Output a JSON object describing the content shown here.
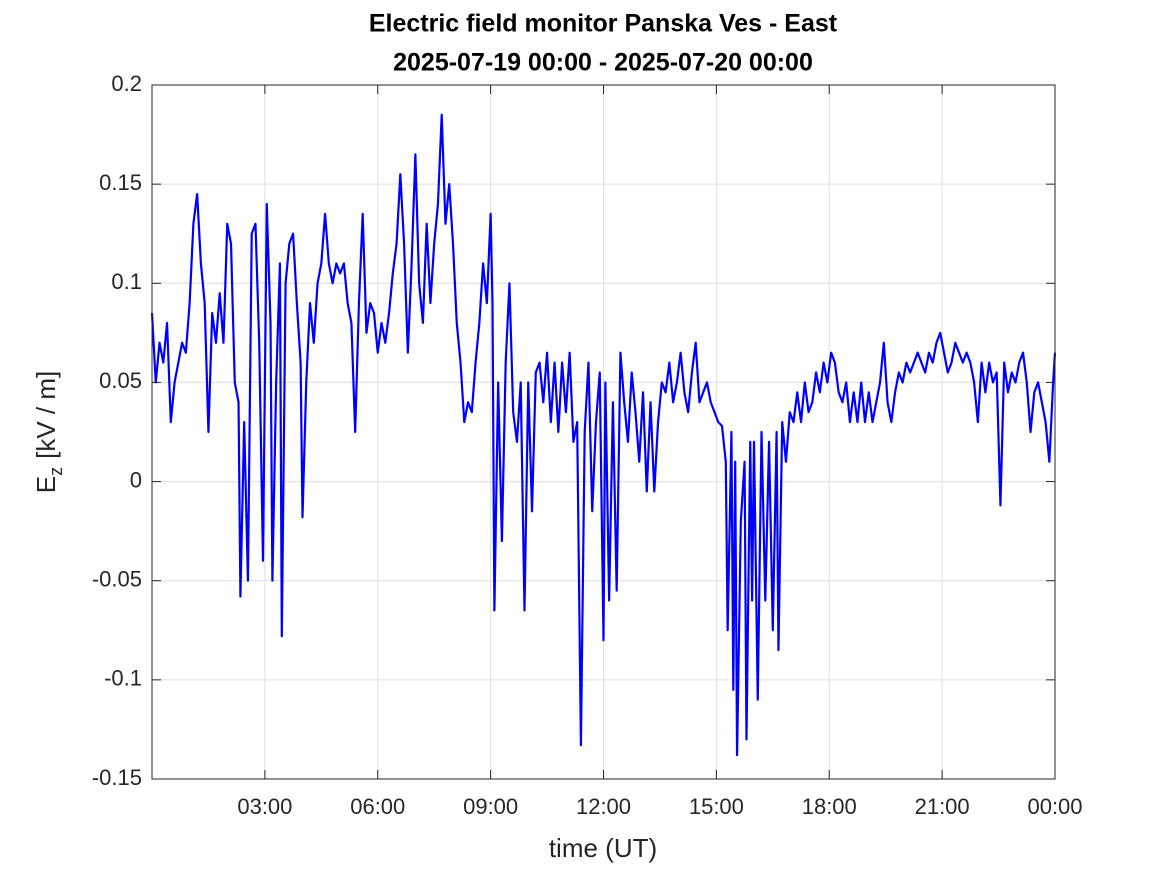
{
  "chart_data": {
    "type": "line",
    "title": "Electric field monitor Panska Ves - East",
    "subtitle": "2025-07-19 00:00 - 2025-07-20 00:00",
    "xlabel": "time (UT)",
    "ylabel": {
      "symbol": "E",
      "subscript": "z",
      "unit": "[kV / m]"
    },
    "xlim": [
      0,
      24
    ],
    "xticks": [
      {
        "value": 3,
        "label": "03:00"
      },
      {
        "value": 6,
        "label": "06:00"
      },
      {
        "value": 9,
        "label": "09:00"
      },
      {
        "value": 12,
        "label": "12:00"
      },
      {
        "value": 15,
        "label": "15:00"
      },
      {
        "value": 18,
        "label": "18:00"
      },
      {
        "value": 21,
        "label": "21:00"
      },
      {
        "value": 24,
        "label": "00:00"
      }
    ],
    "ylim": [
      -0.15,
      0.2
    ],
    "yticks": [
      -0.15,
      -0.1,
      -0.05,
      0,
      0.05,
      0.1,
      0.15,
      0.2
    ],
    "grid": true,
    "x": [
      0.0,
      0.1,
      0.2,
      0.3,
      0.4,
      0.5,
      0.6,
      0.7,
      0.8,
      0.9,
      1.0,
      1.1,
      1.2,
      1.3,
      1.4,
      1.5,
      1.6,
      1.7,
      1.8,
      1.9,
      2.0,
      2.1,
      2.2,
      2.3,
      2.35,
      2.45,
      2.55,
      2.65,
      2.75,
      2.85,
      2.95,
      3.05,
      3.15,
      3.2,
      3.3,
      3.4,
      3.45,
      3.55,
      3.65,
      3.75,
      3.85,
      3.95,
      4.0,
      4.1,
      4.2,
      4.3,
      4.4,
      4.5,
      4.6,
      4.7,
      4.8,
      4.9,
      5.0,
      5.1,
      5.2,
      5.3,
      5.4,
      5.5,
      5.6,
      5.7,
      5.8,
      5.9,
      6.0,
      6.1,
      6.2,
      6.3,
      6.4,
      6.5,
      6.6,
      6.7,
      6.8,
      6.9,
      7.0,
      7.1,
      7.2,
      7.3,
      7.4,
      7.5,
      7.6,
      7.7,
      7.8,
      7.9,
      8.0,
      8.1,
      8.2,
      8.3,
      8.4,
      8.5,
      8.6,
      8.7,
      8.8,
      8.9,
      9.0,
      9.05,
      9.1,
      9.2,
      9.3,
      9.4,
      9.5,
      9.6,
      9.7,
      9.8,
      9.9,
      10.0,
      10.1,
      10.2,
      10.3,
      10.4,
      10.5,
      10.6,
      10.7,
      10.8,
      10.9,
      11.0,
      11.1,
      11.2,
      11.3,
      11.4,
      11.5,
      11.6,
      11.7,
      11.8,
      11.9,
      12.0,
      12.05,
      12.15,
      12.25,
      12.35,
      12.45,
      12.55,
      12.65,
      12.75,
      12.85,
      12.95,
      13.05,
      13.15,
      13.25,
      13.35,
      13.45,
      13.55,
      13.65,
      13.75,
      13.85,
      13.95,
      14.05,
      14.15,
      14.25,
      14.35,
      14.45,
      14.55,
      14.65,
      14.75,
      14.85,
      14.95,
      15.05,
      15.15,
      15.25,
      15.3,
      15.4,
      15.45,
      15.5,
      15.55,
      15.65,
      15.75,
      15.8,
      15.9,
      15.95,
      16.0,
      16.1,
      16.2,
      16.3,
      16.4,
      16.5,
      16.6,
      16.65,
      16.75,
      16.85,
      16.95,
      17.05,
      17.15,
      17.25,
      17.35,
      17.45,
      17.55,
      17.65,
      17.75,
      17.85,
      17.95,
      18.05,
      18.15,
      18.25,
      18.35,
      18.45,
      18.55,
      18.65,
      18.75,
      18.85,
      18.95,
      19.05,
      19.15,
      19.25,
      19.35,
      19.45,
      19.55,
      19.65,
      19.75,
      19.85,
      19.95,
      20.05,
      20.15,
      20.25,
      20.35,
      20.45,
      20.55,
      20.65,
      20.75,
      20.85,
      20.95,
      21.05,
      21.15,
      21.25,
      21.35,
      21.45,
      21.55,
      21.65,
      21.75,
      21.85,
      21.95,
      22.05,
      22.15,
      22.25,
      22.35,
      22.45,
      22.55,
      22.65,
      22.75,
      22.85,
      22.95,
      23.05,
      23.15,
      23.25,
      23.35,
      23.45,
      23.55,
      23.65,
      23.75,
      23.85,
      23.95,
      24.0
    ],
    "series": [
      {
        "name": "Ez",
        "color": "#0000ff",
        "values": [
          0.085,
          0.05,
          0.07,
          0.06,
          0.08,
          0.03,
          0.05,
          0.06,
          0.07,
          0.065,
          0.09,
          0.13,
          0.145,
          0.11,
          0.09,
          0.025,
          0.085,
          0.07,
          0.095,
          0.07,
          0.13,
          0.12,
          0.05,
          0.04,
          -0.058,
          0.03,
          -0.05,
          0.125,
          0.13,
          0.07,
          -0.04,
          0.14,
          0.08,
          -0.05,
          0.05,
          0.11,
          -0.078,
          0.1,
          0.12,
          0.125,
          0.09,
          0.06,
          -0.018,
          0.05,
          0.09,
          0.07,
          0.1,
          0.11,
          0.135,
          0.11,
          0.1,
          0.11,
          0.105,
          0.11,
          0.09,
          0.08,
          0.025,
          0.09,
          0.135,
          0.075,
          0.09,
          0.085,
          0.065,
          0.08,
          0.07,
          0.085,
          0.105,
          0.12,
          0.155,
          0.12,
          0.065,
          0.11,
          0.165,
          0.1,
          0.08,
          0.13,
          0.09,
          0.12,
          0.14,
          0.185,
          0.13,
          0.15,
          0.12,
          0.08,
          0.06,
          0.03,
          0.04,
          0.035,
          0.06,
          0.08,
          0.11,
          0.09,
          0.135,
          0.09,
          -0.065,
          0.05,
          -0.03,
          0.06,
          0.1,
          0.035,
          0.02,
          0.05,
          -0.065,
          0.05,
          -0.015,
          0.055,
          0.06,
          0.04,
          0.065,
          0.03,
          0.06,
          0.025,
          0.06,
          0.035,
          0.065,
          0.02,
          0.03,
          -0.133,
          0.025,
          0.06,
          -0.015,
          0.03,
          0.055,
          -0.08,
          0.05,
          -0.06,
          0.04,
          -0.055,
          0.065,
          0.04,
          0.02,
          0.055,
          0.035,
          0.01,
          0.045,
          -0.005,
          0.04,
          -0.005,
          0.03,
          0.05,
          0.045,
          0.06,
          0.04,
          0.05,
          0.065,
          0.045,
          0.035,
          0.055,
          0.07,
          0.04,
          0.045,
          0.05,
          0.04,
          0.035,
          0.03,
          0.028,
          0.01,
          -0.075,
          0.025,
          -0.105,
          0.01,
          -0.138,
          -0.02,
          0.01,
          -0.13,
          0.02,
          -0.06,
          0.02,
          -0.11,
          0.025,
          -0.06,
          0.02,
          -0.075,
          0.025,
          -0.085,
          0.03,
          0.01,
          0.035,
          0.03,
          0.045,
          0.03,
          0.05,
          0.035,
          0.04,
          0.055,
          0.045,
          0.06,
          0.05,
          0.065,
          0.06,
          0.045,
          0.04,
          0.05,
          0.03,
          0.045,
          0.03,
          0.05,
          0.03,
          0.045,
          0.03,
          0.04,
          0.05,
          0.07,
          0.04,
          0.03,
          0.045,
          0.055,
          0.05,
          0.06,
          0.055,
          0.06,
          0.065,
          0.06,
          0.055,
          0.065,
          0.06,
          0.07,
          0.075,
          0.065,
          0.055,
          0.06,
          0.07,
          0.065,
          0.06,
          0.065,
          0.06,
          0.05,
          0.03,
          0.06,
          0.045,
          0.06,
          0.05,
          0.055,
          -0.012,
          0.06,
          0.045,
          0.055,
          0.05,
          0.06,
          0.065,
          0.05,
          0.025,
          0.045,
          0.05,
          0.04,
          0.03,
          0.01,
          0.05,
          0.065
        ]
      }
    ]
  }
}
